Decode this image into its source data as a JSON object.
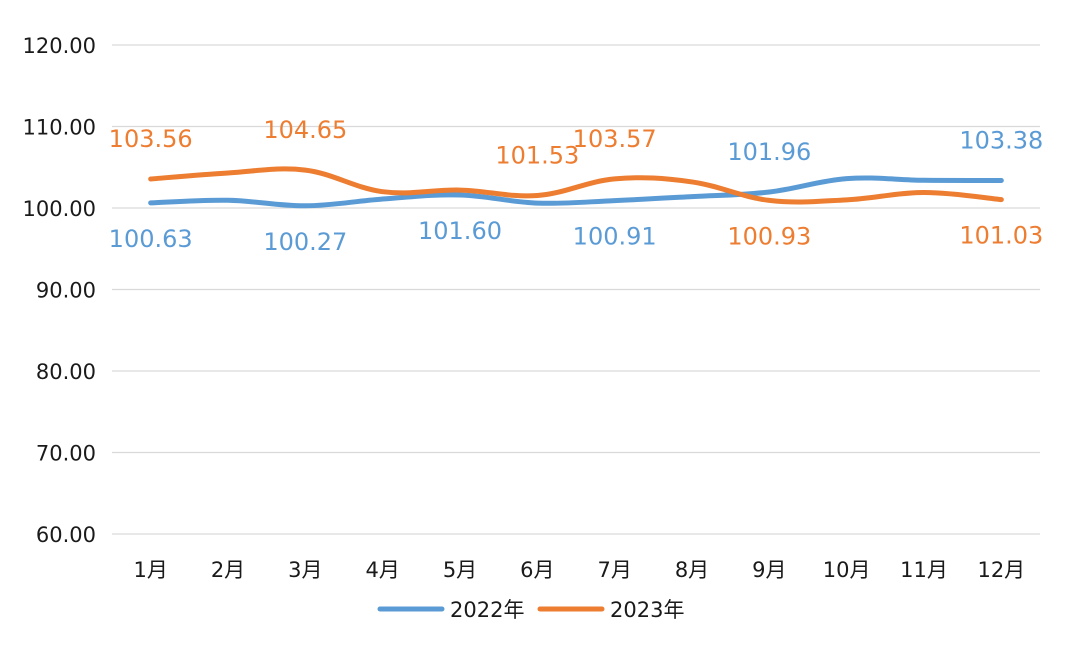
{
  "chart_data": {
    "type": "line",
    "categories": [
      "1月",
      "2月",
      "3月",
      "4月",
      "5月",
      "6月",
      "7月",
      "8月",
      "9月",
      "10月",
      "11月",
      "12月"
    ],
    "ylim": [
      60,
      120
    ],
    "yticks": [
      "60.00",
      "70.00",
      "80.00",
      "90.00",
      "100.00",
      "110.00",
      "120.00"
    ],
    "grid": true,
    "legend_position": "bottom",
    "series": [
      {
        "name": "2022年",
        "color": "#5b9bd5",
        "values": [
          100.63,
          100.95,
          100.27,
          101.1,
          101.6,
          100.6,
          100.91,
          101.4,
          101.96,
          103.6,
          103.4,
          103.38
        ],
        "labels": [
          {
            "index": 0,
            "text": "100.63"
          },
          {
            "index": 2,
            "text": "100.27"
          },
          {
            "index": 4,
            "text": "101.60"
          },
          {
            "index": 6,
            "text": "100.91"
          },
          {
            "index": 8,
            "text": "101.96"
          },
          {
            "index": 11,
            "text": "103.38"
          }
        ]
      },
      {
        "name": "2023年",
        "color": "#ed7d31",
        "values": [
          103.56,
          104.3,
          104.65,
          102.0,
          102.2,
          101.53,
          103.57,
          103.2,
          100.93,
          101.0,
          101.9,
          101.03
        ],
        "labels": [
          {
            "index": 0,
            "text": "103.56"
          },
          {
            "index": 2,
            "text": "104.65"
          },
          {
            "index": 5,
            "text": "101.53"
          },
          {
            "index": 6,
            "text": "103.57"
          },
          {
            "index": 8,
            "text": "100.93"
          },
          {
            "index": 11,
            "text": "101.03"
          }
        ]
      }
    ]
  }
}
